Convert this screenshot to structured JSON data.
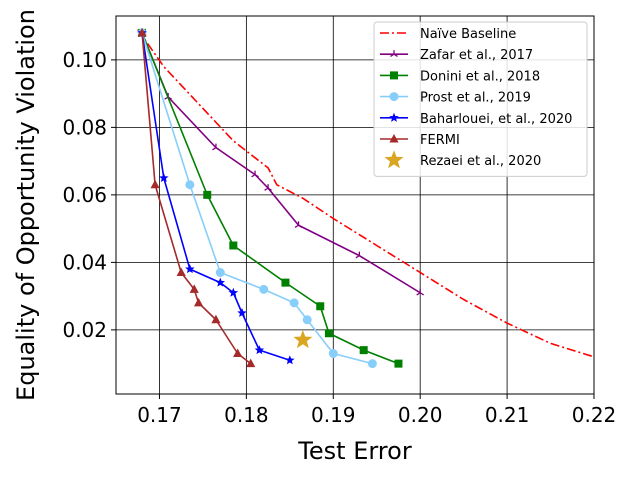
{
  "chart_data": {
    "type": "line",
    "title": "",
    "xlabel": "Test Error",
    "ylabel": "Equality of Opportunity Violation",
    "xlim": [
      0.165,
      0.22
    ],
    "ylim": [
      0.001,
      0.113
    ],
    "x_ticks": [
      0.17,
      0.18,
      0.19,
      0.2,
      0.21,
      0.22
    ],
    "x_tick_labels": [
      "0.17",
      "0.18",
      "0.19",
      "0.20",
      "0.21",
      "0.22"
    ],
    "y_ticks": [
      0.02,
      0.04,
      0.06,
      0.08,
      0.1
    ],
    "y_tick_labels": [
      "0.02",
      "0.04",
      "0.06",
      "0.08",
      "0.10"
    ],
    "grid": true,
    "legend_position": "top-right",
    "series": [
      {
        "name": "Naïve Baseline",
        "color": "#ff0000",
        "style": "dashdot",
        "marker": "none",
        "x": [
          0.1675,
          0.1705,
          0.1745,
          0.1785,
          0.1825,
          0.1835,
          0.1865,
          0.19,
          0.195,
          0.2,
          0.205,
          0.21,
          0.215,
          0.22
        ],
        "y": [
          0.109,
          0.098,
          0.087,
          0.076,
          0.068,
          0.063,
          0.059,
          0.053,
          0.045,
          0.037,
          0.029,
          0.022,
          0.016,
          0.012
        ]
      },
      {
        "name": "Zafar et al., 2017",
        "color": "#800080",
        "style": "solid",
        "marker": "tri",
        "x": [
          0.168,
          0.171,
          0.1765,
          0.181,
          0.1825,
          0.186,
          0.193,
          0.2
        ],
        "y": [
          0.108,
          0.089,
          0.074,
          0.066,
          0.062,
          0.051,
          0.042,
          0.031
        ]
      },
      {
        "name": "Donini et al., 2018",
        "color": "#008000",
        "style": "solid",
        "marker": "square",
        "x": [
          0.168,
          0.1755,
          0.1785,
          0.1845,
          0.1885,
          0.1895,
          0.1935,
          0.1975
        ],
        "y": [
          0.108,
          0.06,
          0.045,
          0.034,
          0.027,
          0.019,
          0.014,
          0.01
        ]
      },
      {
        "name": "Prost et al., 2019",
        "color": "#87cefa",
        "style": "solid",
        "marker": "circle",
        "x": [
          0.168,
          0.1735,
          0.177,
          0.182,
          0.1855,
          0.187,
          0.19,
          0.1945
        ],
        "y": [
          0.108,
          0.063,
          0.037,
          0.032,
          0.028,
          0.023,
          0.013,
          0.01
        ]
      },
      {
        "name": "Baharlouei, et al., 2020",
        "color": "#0000ff",
        "style": "solid",
        "marker": "star",
        "x": [
          0.168,
          0.1705,
          0.1735,
          0.177,
          0.1785,
          0.1795,
          0.1815,
          0.185
        ],
        "y": [
          0.108,
          0.065,
          0.038,
          0.034,
          0.031,
          0.025,
          0.014,
          0.011
        ]
      },
      {
        "name": "FERMI",
        "color": "#a52a2a",
        "style": "solid",
        "marker": "triangle",
        "x": [
          0.168,
          0.1695,
          0.1725,
          0.174,
          0.1745,
          0.1765,
          0.179,
          0.1805
        ],
        "y": [
          0.108,
          0.063,
          0.037,
          0.032,
          0.028,
          0.023,
          0.013,
          0.01
        ]
      },
      {
        "name": "Rezaei et al., 2020",
        "color": "#daa520",
        "style": "none",
        "marker": "big-star",
        "x": [
          0.1865
        ],
        "y": [
          0.017
        ]
      }
    ]
  }
}
